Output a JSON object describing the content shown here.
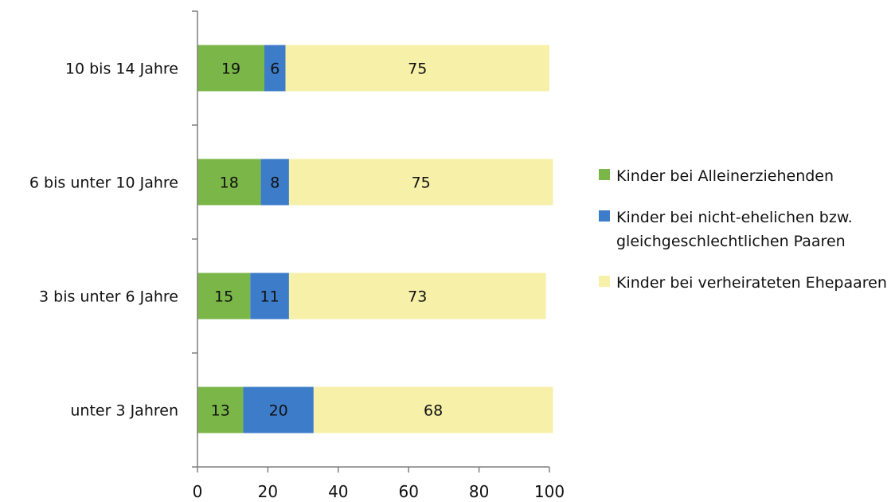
{
  "chart_data": {
    "type": "bar",
    "orientation": "horizontal",
    "stacked": true,
    "categories": [
      "10 bis 14 Jahre",
      "6 bis unter 10 Jahre",
      "3 bis unter 6 Jahre",
      "unter 3 Jahren"
    ],
    "series": [
      {
        "name": "Kinder bei Alleinerziehenden",
        "color": "#7ab648",
        "values": [
          19,
          18,
          15,
          13
        ]
      },
      {
        "name": "Kinder bei nicht-ehelichen bzw. gleichgeschlechtlichen Paaren",
        "color": "#3d7cc9",
        "values": [
          6,
          8,
          11,
          20
        ]
      },
      {
        "name": "Kinder bei verheirateten Ehepaaren",
        "color": "#f7f0a8",
        "values": [
          75,
          75,
          73,
          68
        ]
      }
    ],
    "xlim": [
      0,
      100
    ],
    "xticks": [
      0,
      20,
      40,
      60,
      80,
      100
    ],
    "grid": false,
    "legend_position": "right",
    "data_labels": true
  }
}
